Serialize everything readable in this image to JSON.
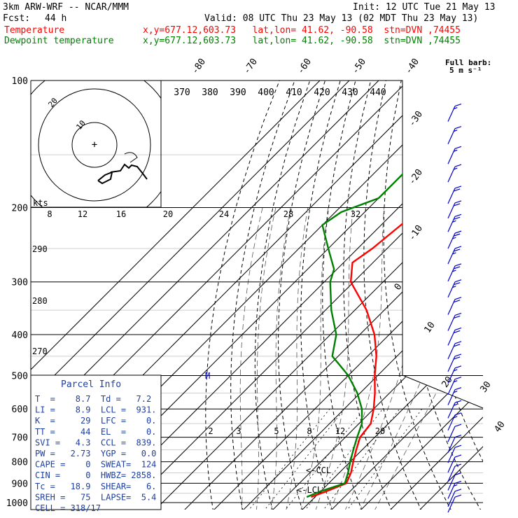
{
  "header": {
    "model": "3km ARW-WRF -- NCAR/MMM",
    "init": "Init: 12 UTC Tue 21 May 13",
    "fcst_label": "Fcst:",
    "fcst_value": "44 h",
    "valid": "Valid: 08 UTC Thu 23 May 13 (02 MDT Thu 23 May 13)",
    "line_temp_label": "Temperature",
    "line_dew_label": "Dewpoint temperature",
    "line_meta": "x,y=677.12,603.73   lat,lon= 41.62, -90.58  stn=DVN ,74455"
  },
  "colors": {
    "temperature": "#ff0000",
    "dewpoint": "#008000",
    "barb": "#0000cc",
    "parcel": "#1f3fa0"
  },
  "barb_legend": {
    "title": "Full barb:",
    "value": "5 m s⁻¹"
  },
  "parcel_info": {
    "title": "Parcel Info",
    "rows": [
      "T  =    8.7  Td =   7.2",
      "LI =    8.9  LCL =  931.",
      "K  =     29  LFC =    0.",
      "TT =     44  EL  =    0.",
      "SVI =   4.3  CCL =  839.",
      "PW =   2.73  YGP =   0.0",
      "CAPE =    0  SWEAT=  124",
      "CIN =     0  HWBZ= 2858.",
      "Tc =   18.9  SHEAR=   6.",
      "SREH =   75  LAPSE=  5.4",
      "CELL = 318/17"
    ]
  },
  "annotations": {
    "ccl": "<-CCL",
    "lcl": "<-LCL",
    "m": "M"
  },
  "hodograph": {
    "units": "kts",
    "ring_labels": [
      "10",
      "20"
    ]
  },
  "chart_data": {
    "type": "line",
    "title": "Skew-T log-P",
    "pressure_levels": [
      100,
      200,
      300,
      400,
      500,
      600,
      700,
      800,
      900,
      1000
    ],
    "isotherm_labels": [
      "-80",
      "-70",
      "-60",
      "-50",
      "-40",
      "-30",
      "-20",
      "-10",
      "0",
      "10",
      "20",
      "30",
      "40"
    ],
    "theta_top_labels": [
      "370",
      "380",
      "390",
      "400",
      "410",
      "420",
      "430",
      "440"
    ],
    "theta_left_labels": [
      "290",
      "280",
      "270"
    ],
    "mixing_ratio_labels": [
      "2",
      "3",
      "5",
      "8",
      "12",
      "20"
    ],
    "hodo_speed_labels": [
      "8",
      "12",
      "16",
      "20",
      "24",
      "28",
      "32"
    ],
    "series": [
      {
        "name": "Temperature",
        "color": "#ff0000",
        "points": [
          [
            100,
            -56
          ],
          [
            150,
            -54
          ],
          [
            200,
            -52
          ],
          [
            250,
            -55
          ],
          [
            270,
            -57
          ],
          [
            300,
            -51
          ],
          [
            350,
            -36
          ],
          [
            400,
            -25
          ],
          [
            450,
            -17
          ],
          [
            500,
            -11
          ],
          [
            550,
            -5
          ],
          [
            600,
            0
          ],
          [
            650,
            4
          ],
          [
            700,
            5
          ],
          [
            750,
            8
          ],
          [
            800,
            11
          ],
          [
            850,
            14
          ],
          [
            900,
            16
          ],
          [
            940,
            12
          ],
          [
            970,
            8.7
          ]
        ]
      },
      {
        "name": "Dewpoint temperature",
        "color": "#008000",
        "points": [
          [
            100,
            -68
          ],
          [
            130,
            -68
          ],
          [
            160,
            -70
          ],
          [
            190,
            -70
          ],
          [
            205,
            -78
          ],
          [
            220,
            -80
          ],
          [
            250,
            -70
          ],
          [
            280,
            -61
          ],
          [
            300,
            -58
          ],
          [
            350,
            -48
          ],
          [
            400,
            -38
          ],
          [
            450,
            -32
          ],
          [
            470,
            -27
          ],
          [
            500,
            -20
          ],
          [
            550,
            -11
          ],
          [
            600,
            -4
          ],
          [
            650,
            1
          ],
          [
            700,
            4
          ],
          [
            750,
            7
          ],
          [
            800,
            10
          ],
          [
            850,
            13
          ],
          [
            900,
            15.5
          ],
          [
            940,
            10
          ],
          [
            970,
            7.2
          ]
        ]
      }
    ],
    "wind_barbs": [
      {
        "p": 115,
        "spd": 15
      },
      {
        "p": 130,
        "spd": 15
      },
      {
        "p": 145,
        "spd": 15
      },
      {
        "p": 160,
        "spd": 15
      },
      {
        "p": 180,
        "spd": 20
      },
      {
        "p": 195,
        "spd": 20
      },
      {
        "p": 210,
        "spd": 25
      },
      {
        "p": 230,
        "spd": 25
      },
      {
        "p": 250,
        "spd": 25
      },
      {
        "p": 275,
        "spd": 25
      },
      {
        "p": 300,
        "spd": 25
      },
      {
        "p": 330,
        "spd": 20
      },
      {
        "p": 360,
        "spd": 20
      },
      {
        "p": 390,
        "spd": 20
      },
      {
        "p": 420,
        "spd": 20
      },
      {
        "p": 450,
        "spd": 20
      },
      {
        "p": 480,
        "spd": 15
      },
      {
        "p": 510,
        "spd": 15
      },
      {
        "p": 540,
        "spd": 15
      },
      {
        "p": 580,
        "spd": 15
      },
      {
        "p": 620,
        "spd": 15
      },
      {
        "p": 660,
        "spd": 10
      },
      {
        "p": 700,
        "spd": 10
      },
      {
        "p": 740,
        "spd": 10
      },
      {
        "p": 780,
        "spd": 10
      },
      {
        "p": 820,
        "spd": 10
      },
      {
        "p": 860,
        "spd": 10
      },
      {
        "p": 900,
        "spd": 15
      },
      {
        "p": 940,
        "spd": 10
      },
      {
        "p": 970,
        "spd": 10
      }
    ]
  }
}
